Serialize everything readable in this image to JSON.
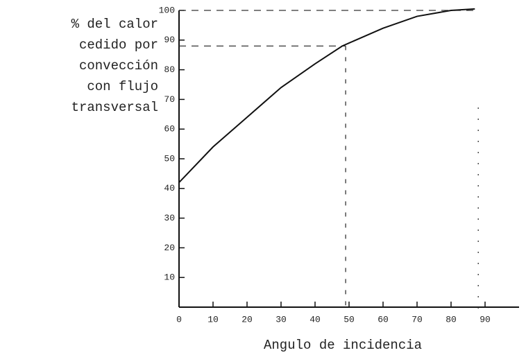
{
  "chart_data": {
    "type": "line",
    "ylabel": [
      "% del calor",
      "cedido por",
      "convección",
      "con flujo",
      "transversal"
    ],
    "xlabel": "Angulo de incidencia",
    "x": [
      0,
      10,
      20,
      30,
      40,
      48,
      50,
      60,
      70,
      80,
      87
    ],
    "series": [
      {
        "color": "#111111",
        "values": [
          42,
          54,
          64,
          74,
          82,
          88,
          89,
          94,
          98,
          100,
          100.5
        ]
      }
    ],
    "xlim": [
      0,
      100
    ],
    "xticks": [
      0,
      10,
      20,
      30,
      40,
      50,
      60,
      70,
      80,
      90
    ],
    "ylim": [
      0,
      100
    ],
    "yticks": [
      10,
      20,
      30,
      40,
      50,
      60,
      70,
      80,
      90,
      100
    ],
    "reference_y": [
      100,
      88
    ],
    "reference_x": [
      49,
      88
    ]
  }
}
